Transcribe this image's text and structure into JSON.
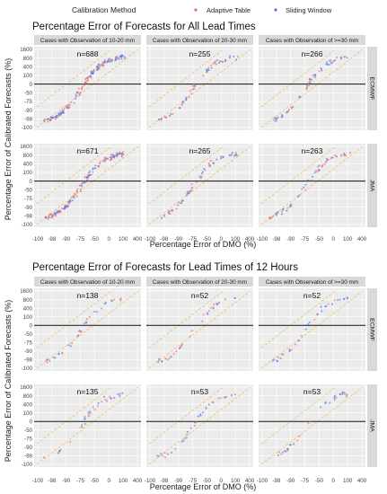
{
  "legend": {
    "title": "Calibration Method",
    "entries": [
      {
        "label": "Adaptive Table",
        "color": "#f26a6a"
      },
      {
        "label": "Sliding Window",
        "color": "#4f76e8"
      }
    ]
  },
  "chart_data": [
    {
      "type": "scatter",
      "title": "Percentage Error of Forecasts for All Lead Times",
      "xlabel": "Percentage Error of DMO (%)",
      "ylabel": "Percentage Error of Calibrated Forecasts (%)",
      "x_ticks": [
        "-100",
        "-98",
        "-90",
        "-75",
        "-50",
        "0",
        "100",
        "400"
      ],
      "y_ticks": [
        "1600",
        "800",
        "400",
        "100",
        "0",
        "-50",
        "-75",
        "-90",
        "-98",
        "-100"
      ],
      "column_strips": [
        "Cases with Observation of 10-20 mm",
        "Cases with Observation of 20-30 mm",
        "Cases with Observation of >=30 mm"
      ],
      "row_strips": [
        "ECMWF",
        "JMA"
      ],
      "panels": [
        {
          "row": "ECMWF",
          "column": "Cases with Observation of 10-20 mm",
          "n_label": "n=688"
        },
        {
          "row": "ECMWF",
          "column": "Cases with Observation of 20-30 mm",
          "n_label": "n=255"
        },
        {
          "row": "ECMWF",
          "column": "Cases with Observation of >=30 mm",
          "n_label": "n=266"
        },
        {
          "row": "JMA",
          "column": "Cases with Observation of 10-20 mm",
          "n_label": "n=671"
        },
        {
          "row": "JMA",
          "column": "Cases with Observation of 20-30 mm",
          "n_label": "n=265"
        },
        {
          "row": "JMA",
          "column": "Cases with Observation of >=30 mm",
          "n_label": "n=263"
        }
      ],
      "grid": true,
      "reference_lines": [
        "horizontal line at y = 0",
        "dashed diagonal lines"
      ],
      "legend_placement": "top"
    },
    {
      "type": "scatter",
      "title": "Percentage Error of Forecasts for Lead Times of 12 Hours",
      "xlabel": "Percentage Error of DMO (%)",
      "ylabel": "Percentage Error of Calibrated Forecasts (%)",
      "x_ticks": [
        "-100",
        "-98",
        "-90",
        "-75",
        "-50",
        "0",
        "100",
        "400"
      ],
      "y_ticks": [
        "1600",
        "800",
        "400",
        "100",
        "0",
        "-50",
        "-75",
        "-90",
        "-98",
        "-100"
      ],
      "column_strips": [
        "Cases with Observation of 10-20 mm",
        "Cases with Observation of 20-30 mm",
        "Cases with Observation of >=30 mm"
      ],
      "row_strips": [
        "ECMWF",
        "JMA"
      ],
      "panels": [
        {
          "row": "ECMWF",
          "column": "Cases with Observation of 10-20 mm",
          "n_label": "n=138"
        },
        {
          "row": "ECMWF",
          "column": "Cases with Observation of 20-30 mm",
          "n_label": "n=52"
        },
        {
          "row": "ECMWF",
          "column": "Cases with Observation of >=30 mm",
          "n_label": "n=52"
        },
        {
          "row": "JMA",
          "column": "Cases with Observation of 10-20 mm",
          "n_label": "n=135"
        },
        {
          "row": "JMA",
          "column": "Cases with Observation of 20-30 mm",
          "n_label": "n=53"
        },
        {
          "row": "JMA",
          "column": "Cases with Observation of >=30 mm",
          "n_label": "n=53"
        }
      ],
      "grid": true,
      "reference_lines": [
        "horizontal line at y = 0",
        "dashed diagonal lines"
      ],
      "legend_placement": "top"
    }
  ]
}
